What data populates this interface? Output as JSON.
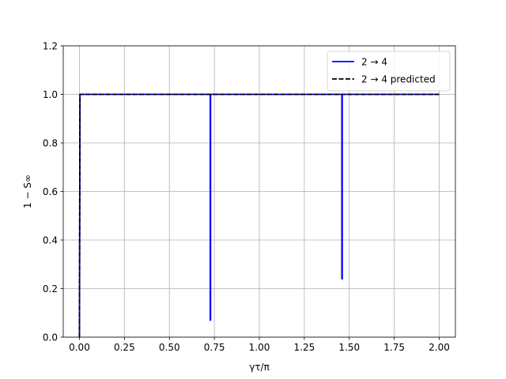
{
  "chart_data": {
    "type": "line",
    "xlabel": "γτ/π",
    "ylabel": "1 − S∞",
    "xlim": [
      -0.09,
      2.09
    ],
    "ylim": [
      0,
      1.2
    ],
    "x_ticks": [
      0.0,
      0.25,
      0.5,
      0.75,
      1.0,
      1.25,
      1.5,
      1.75,
      2.0
    ],
    "x_tick_labels": [
      "0.00",
      "0.25",
      "0.50",
      "0.75",
      "1.00",
      "1.25",
      "1.50",
      "1.75",
      "2.00"
    ],
    "y_ticks": [
      0.0,
      0.2,
      0.4,
      0.6,
      0.8,
      1.0,
      1.2
    ],
    "y_tick_labels": [
      "0.0",
      "0.2",
      "0.4",
      "0.6",
      "0.8",
      "1.0",
      "1.2"
    ],
    "grid": true,
    "legend_position": "top-right",
    "series": [
      {
        "name": "2 → 4",
        "color": "#0000ff",
        "style": "solid",
        "x": [
          0.0,
          0.003,
          0.003,
          0.727,
          0.727,
          0.729,
          0.729,
          1.459,
          1.459,
          1.461,
          1.461,
          2.0
        ],
        "y": [
          0.0,
          1.0,
          1.0,
          1.0,
          0.07,
          0.07,
          1.0,
          1.0,
          0.24,
          0.24,
          1.0,
          1.0
        ]
      },
      {
        "name": "2 → 4 predicted",
        "color": "#000000",
        "style": "dashed",
        "x": [
          0.0,
          0.003,
          2.0
        ],
        "y": [
          0.0,
          1.0,
          1.0
        ]
      }
    ]
  }
}
